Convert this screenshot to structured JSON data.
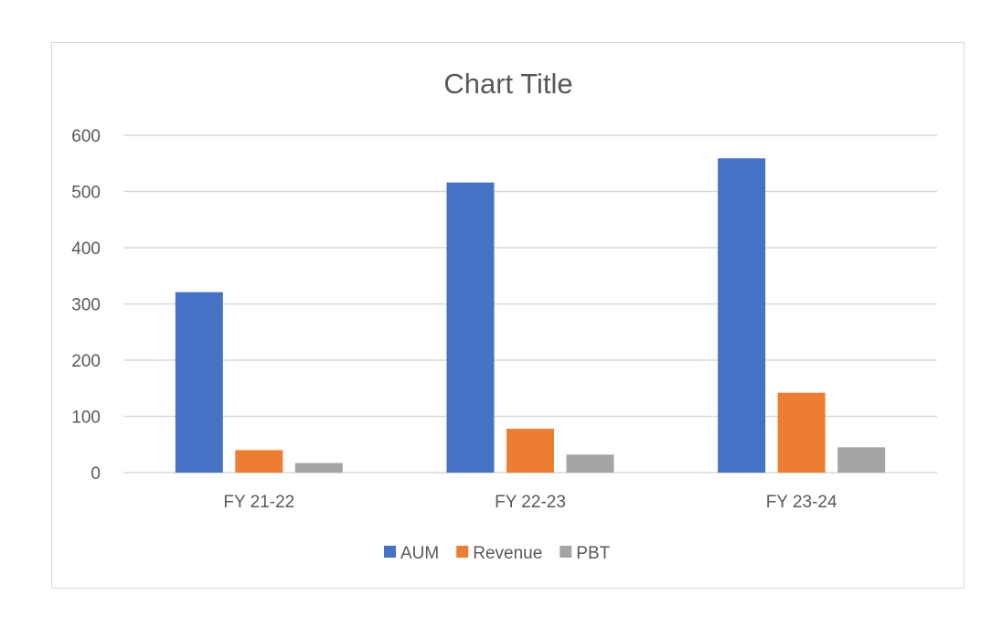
{
  "chart_data": {
    "type": "bar",
    "title": "Chart Title",
    "categories": [
      "FY 21-22",
      "FY 22-23",
      "FY 23-24"
    ],
    "series": [
      {
        "name": "AUM",
        "color": "#4472C4",
        "values": [
          321,
          516,
          559
        ]
      },
      {
        "name": "Revenue",
        "color": "#ED7D31",
        "values": [
          40,
          78,
          142
        ]
      },
      {
        "name": "PBT",
        "color": "#A5A5A5",
        "values": [
          17,
          32,
          45
        ]
      }
    ],
    "ylim": [
      0,
      600
    ],
    "yticks": [
      0,
      100,
      200,
      300,
      400,
      500,
      600
    ],
    "grid": true,
    "legend": "bottom",
    "xlabel": "",
    "ylabel": ""
  }
}
